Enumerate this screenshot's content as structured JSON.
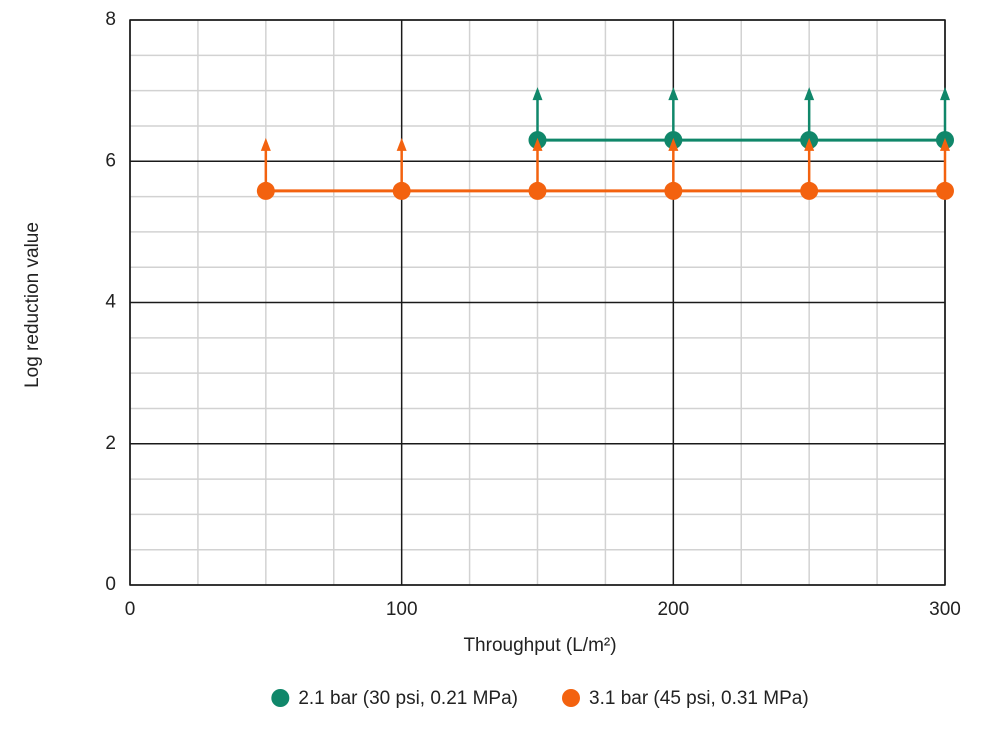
{
  "chart_data": {
    "type": "line",
    "x_label": "Throughput (L/m²)",
    "y_label": "Log reduction value",
    "xlim": [
      0,
      300
    ],
    "xticks": [
      0,
      100,
      200,
      300
    ],
    "ylim": [
      0,
      8
    ],
    "yticks": [
      0,
      2,
      4,
      6,
      8
    ],
    "x_minor_ticks": [
      25,
      50,
      75,
      125,
      150,
      175,
      225,
      250,
      275
    ],
    "y_minor_ticks": [
      0.5,
      1,
      1.5,
      2.5,
      3,
      3.5,
      4.5,
      5,
      5.5,
      6.5,
      7,
      7.5
    ],
    "grid": true,
    "legend": "bottom",
    "series": [
      {
        "name": "2.1 bar (30 psi, 0.21 MPa)",
        "color": "#10876a",
        "x": [
          150,
          200,
          250,
          300
        ],
        "values": [
          6.3,
          6.3,
          6.3,
          6.3
        ]
      },
      {
        "name": "3.1 bar (45 psi, 0.31 MPa)",
        "color": "#f3620f",
        "x": [
          50,
          100,
          150,
          200,
          250,
          300
        ],
        "values": [
          5.58,
          5.58,
          5.58,
          5.58,
          5.58,
          5.58
        ]
      }
    ]
  }
}
